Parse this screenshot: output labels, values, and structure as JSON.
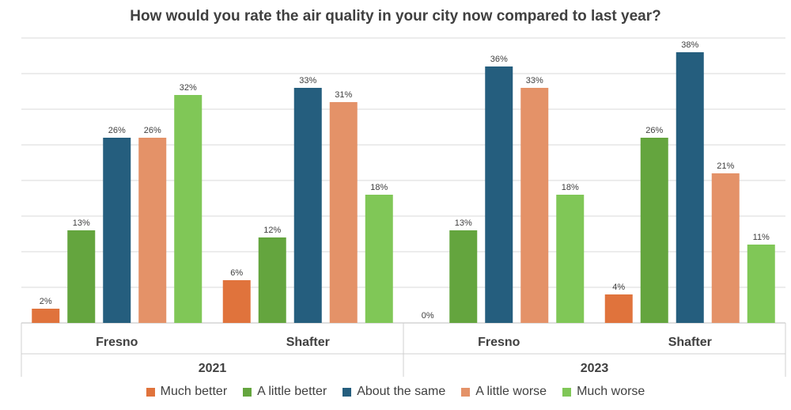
{
  "chart_data": {
    "type": "bar",
    "title": "How would you rate the air quality in your city now compared to last year?",
    "ylim": [
      0,
      40
    ],
    "grid": true,
    "legend_position": "bottom",
    "groups": [
      {
        "year": "2021",
        "cities": [
          {
            "name": "Fresno",
            "values": [
              2,
              13,
              26,
              26,
              32
            ],
            "labels": [
              "2%",
              "13%",
              "26%",
              "26%",
              "32%"
            ]
          },
          {
            "name": "Shafter",
            "values": [
              6,
              12,
              33,
              31,
              18
            ],
            "labels": [
              "6%",
              "12%",
              "33%",
              "31%",
              "18%"
            ]
          }
        ]
      },
      {
        "year": "2023",
        "cities": [
          {
            "name": "Fresno",
            "values": [
              0,
              13,
              36,
              33,
              18
            ],
            "labels": [
              "0%",
              "13%",
              "36%",
              "33%",
              "18%"
            ]
          },
          {
            "name": "Shafter",
            "values": [
              4,
              26,
              38,
              21,
              11
            ],
            "labels": [
              "4%",
              "26%",
              "38%",
              "21%",
              "11%"
            ]
          }
        ]
      }
    ],
    "series": [
      {
        "name": "Much better",
        "color": "#E0733C"
      },
      {
        "name": "A little better",
        "color": "#64A53E"
      },
      {
        "name": "About the same",
        "color": "#255E7E"
      },
      {
        "name": "A little worse",
        "color": "#E49268"
      },
      {
        "name": "Much worse",
        "color": "#80C757"
      }
    ]
  }
}
